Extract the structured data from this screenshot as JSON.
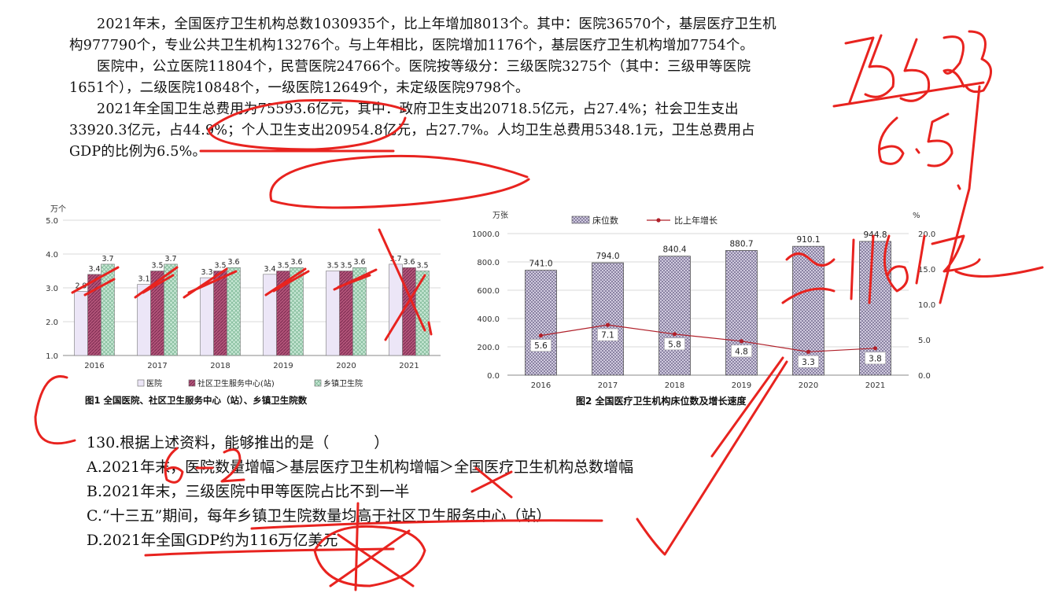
{
  "passage": [
    "2021年末，全国医疗卫生机构总数1030935个，比上年增加8013个。其中：医院36570个，基层医疗卫生机构977790个，专业公共卫生机构13276个。与上年相比，医院增加1176个，基层医疗卫生机构增加7754个。",
    "医院中，公立医院11804个，民营医院24766个。医院按等级分：三级医院3275个（其中：三级甲等医院1651个），二级医院10848个，一级医院12649个，未定级医院9798个。",
    "2021年全国卫生总费用为75593.6亿元，其中：政府卫生支出20718.5亿元，占27.4%；社会卫生支出33920.3亿元，占44.9%；个人卫生支出20954.8亿元，占27.7%。人均卫生总费用5348.1元，卫生总费用占GDP的比例为6.5%。"
  ],
  "chart_data": [
    {
      "type": "bar",
      "title": "图1 全国医院、社区卫生服务中心（站）、乡镇卫生院数",
      "ylabel": "万个",
      "ylim": [
        1.0,
        5.0
      ],
      "yticks": [
        "1.0",
        "2.0",
        "3.0",
        "4.0",
        "5.0"
      ],
      "categories": [
        "2016",
        "2017",
        "2018",
        "2019",
        "2020",
        "2021"
      ],
      "series": [
        {
          "name": "医院",
          "values": [
            2.9,
            3.1,
            3.3,
            3.4,
            3.5,
            3.7
          ],
          "color": "#ece6f7"
        },
        {
          "name": "社区卫生服务中心(站)",
          "values": [
            3.4,
            3.5,
            3.5,
            3.5,
            3.5,
            3.6
          ],
          "color": "#b3557a"
        },
        {
          "name": "乡镇卫生院",
          "values": [
            3.7,
            3.7,
            3.6,
            3.6,
            3.6,
            3.5
          ],
          "color": "#c9e8d6"
        }
      ],
      "legend": "bottom",
      "grid": true
    },
    {
      "type": "bar+line",
      "title": "图2 全国医疗卫生机构床位数及增长速度",
      "ylabel_left": "万张",
      "ylabel_right": "%",
      "ylim_left": [
        0,
        1000
      ],
      "ylim_right": [
        0,
        20
      ],
      "yticks_left": [
        "0.0",
        "200.0",
        "400.0",
        "600.0",
        "800.0",
        "1000.0"
      ],
      "yticks_right": [
        "0.0",
        "5.0",
        "10.0",
        "15.0",
        "20.0"
      ],
      "categories": [
        "2016",
        "2017",
        "2018",
        "2019",
        "2020",
        "2021"
      ],
      "bars": {
        "name": "床位数",
        "values": [
          741.0,
          794.0,
          840.4,
          880.7,
          910.1,
          944.8
        ],
        "labels": [
          "741.0",
          "794.0",
          "840.4",
          "880.7",
          "910.1",
          "944.8"
        ],
        "color": "#b9b3cc"
      },
      "line": {
        "name": "比上年增长",
        "values": [
          5.6,
          7.1,
          5.8,
          4.8,
          3.3,
          3.8
        ],
        "labels": [
          "5.6",
          "7.1",
          "5.8",
          "4.8",
          "3.3",
          "3.8"
        ],
        "color": "#b0202a"
      },
      "legend": "top",
      "grid": true
    }
  ],
  "question": {
    "stem": "130.根据上述资料，能够推出的是（　　　）",
    "options": [
      "A.2021年末，医院数量增幅＞基层医疗卫生机构增幅＞全国医疗卫生机构总数增幅",
      "B.2021年末，三级医院中甲等医院占比不到一半",
      "C.“十三五”期间，每年乡镇卫生院数量均高于社区卫生服务中心（站）",
      "D.2021年全国GDP约为116万亿美元"
    ]
  },
  "annotations": {
    "ink_color": "#e8231f",
    "handwritten_notes": [
      "75593",
      "6.5",
      "116亿",
      "6-2"
    ]
  }
}
